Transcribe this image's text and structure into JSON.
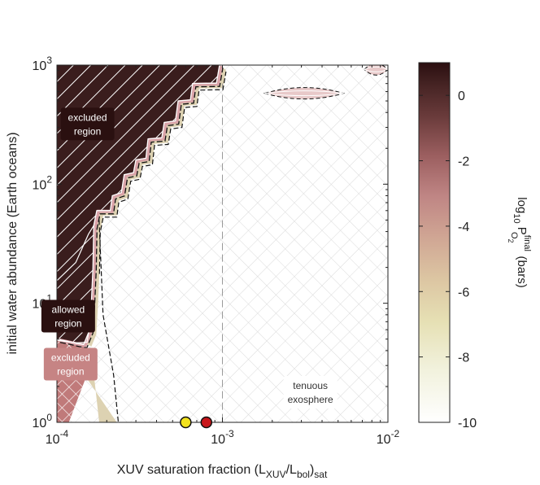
{
  "chart_data": {
    "type": "heatmap",
    "title": "",
    "xlabel": {
      "base": "XUV saturation fraction (L",
      "sub1": "XUV",
      "mid": "/L",
      "sub2": "bol",
      "close": ")",
      "sub3": "sat"
    },
    "ylabel": "initial water abundance (Earth oceans)",
    "xscale": "log",
    "yscale": "log",
    "xlim": [
      0.0001,
      0.01
    ],
    "ylim": [
      1,
      1000
    ],
    "x_ticks": [
      {
        "value": 0.0001,
        "base": "10",
        "exp": "-4"
      },
      {
        "value": 0.001,
        "base": "10",
        "exp": "-3"
      },
      {
        "value": 0.01,
        "base": "10",
        "exp": "-2"
      }
    ],
    "y_ticks": [
      {
        "value": 1,
        "base": "10",
        "exp": "0"
      },
      {
        "value": 10,
        "base": "10",
        "exp": "1"
      },
      {
        "value": 100,
        "base": "10",
        "exp": "2"
      },
      {
        "value": 1000,
        "base": "10",
        "exp": "3"
      }
    ],
    "colorbar": {
      "label": {
        "pre": "log",
        "sub10": "10",
        "P": " P",
        "sup": "final",
        "sub": "O",
        "sub2": "2",
        "unit": "(bars)"
      },
      "range": [
        -10,
        1
      ],
      "ticks": [
        "0",
        "-2",
        "-4",
        "-6",
        "-8",
        "-10"
      ],
      "tick_values": [
        0,
        -2,
        -4,
        -6,
        -8,
        -10
      ],
      "colormap": [
        "#ffffff",
        "#eeeed2",
        "#e4dcae",
        "#d6b89c",
        "#c68f8a",
        "#a96868",
        "#7d4646",
        "#4a2a2a",
        "#2c1515"
      ]
    },
    "boundary": [
      [
        0.0001,
        5.0
      ],
      [
        0.000115,
        4.8
      ],
      [
        0.000131,
        4.6
      ],
      [
        0.000145,
        4.5
      ],
      [
        0.000158,
        6.0
      ],
      [
        0.000162,
        11.0
      ],
      [
        0.000165,
        20.0
      ],
      [
        0.000167,
        45.0
      ],
      [
        0.000174,
        60.0
      ],
      [
        0.00021,
        60.0
      ],
      [
        0.000216,
        80.0
      ],
      [
        0.000245,
        85.0
      ],
      [
        0.000255,
        120.0
      ],
      [
        0.00029,
        125.0
      ],
      [
        0.0003,
        160.0
      ],
      [
        0.000345,
        165.0
      ],
      [
        0.000355,
        240.0
      ],
      [
        0.00043,
        245.0
      ],
      [
        0.000445,
        330.0
      ],
      [
        0.00052,
        340.0
      ],
      [
        0.00054,
        500.0
      ],
      [
        0.00064,
        510.0
      ],
      [
        0.00066,
        700.0
      ],
      [
        0.00092,
        705.0
      ],
      [
        0.00096,
        1000.0
      ]
    ],
    "vline_x": 0.001,
    "contour_islands": [
      {
        "x": [
          0.0018,
          0.0054
        ],
        "y": 580
      },
      {
        "x": [
          0.0072,
          0.01
        ],
        "y": 920
      }
    ],
    "annotations": [
      {
        "text": [
          "excluded",
          "region"
        ],
        "x": 0.000153,
        "y": 320,
        "style": "dark"
      },
      {
        "text": [
          "allowed",
          "region"
        ],
        "x": 0.000117,
        "y": 7.8,
        "style": "dark"
      },
      {
        "text": [
          "excluded",
          "region"
        ],
        "x": 0.000121,
        "y": 3.08,
        "style": "pink"
      },
      {
        "text": [
          "tenuous",
          "exosphere"
        ],
        "x": 0.0034,
        "y": 1.79,
        "style": "light"
      }
    ],
    "markers": [
      {
        "x": 0.0006,
        "y": 1,
        "color": "#f2e21e"
      },
      {
        "x": 0.0008,
        "y": 1,
        "color": "#c8161b"
      }
    ]
  }
}
